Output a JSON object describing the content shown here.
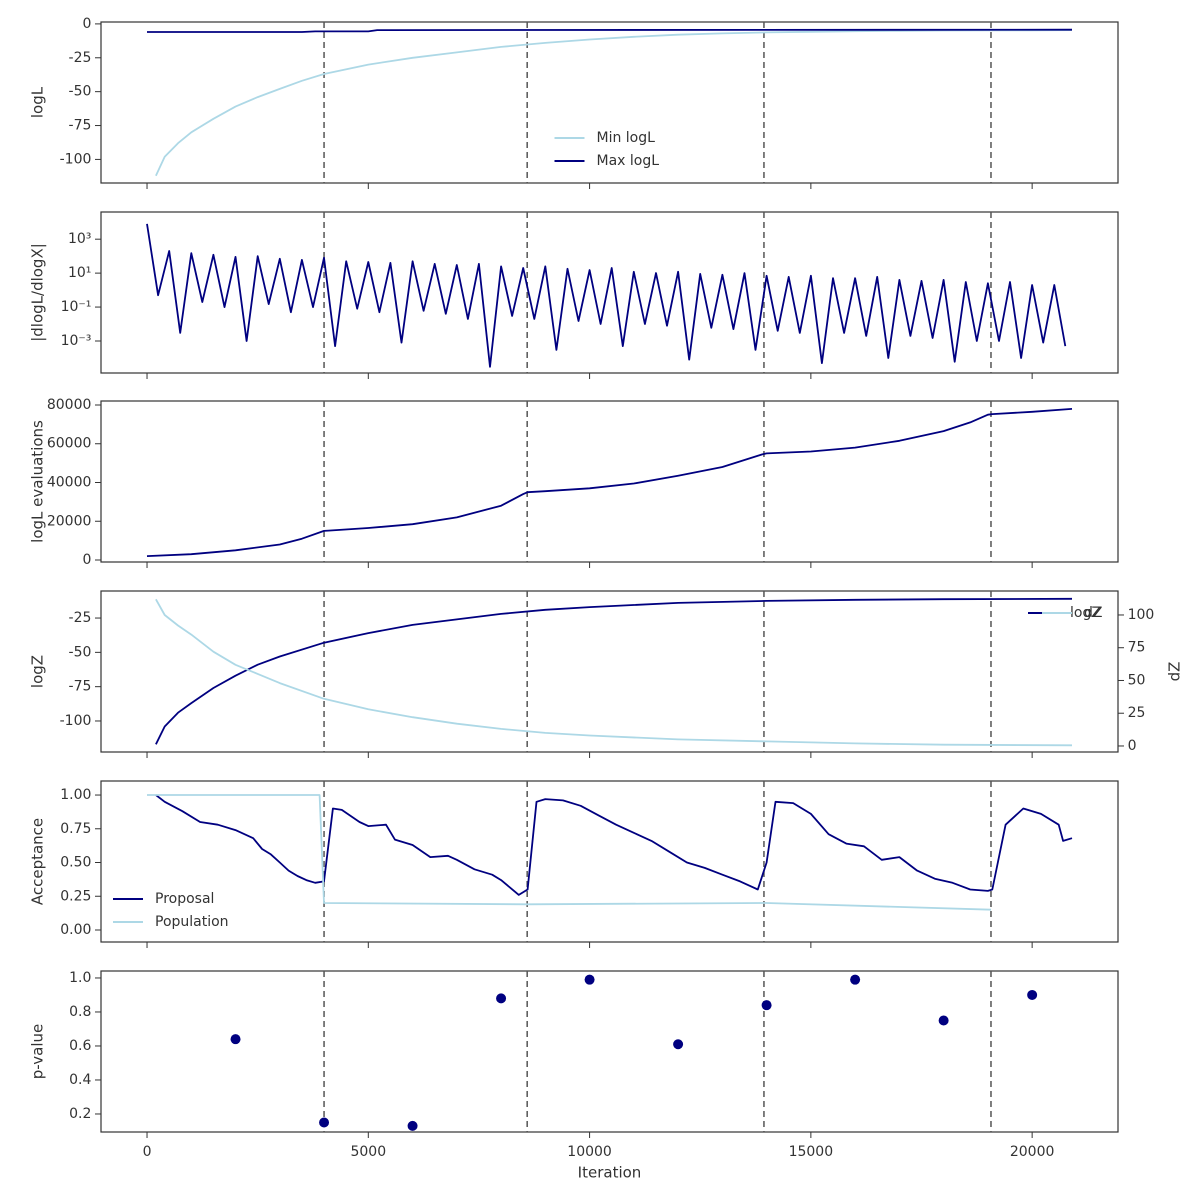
{
  "chart_data": [
    {
      "type": "line",
      "ylabel": "logL",
      "xlim": [
        -1040,
        21940
      ],
      "ylim": [
        -117.4,
        1.4
      ],
      "xticks": [
        0,
        5000,
        10000,
        15000,
        20000
      ],
      "show_xticklabels": false,
      "yticks": [
        0,
        -25,
        -50,
        -75,
        -100
      ],
      "vlines": [
        4000,
        8590,
        13940,
        19070
      ],
      "legend": "lower center",
      "series": [
        {
          "name": "Min logL",
          "color": "#add8e6",
          "x": [
            200,
            400,
            700,
            1000,
            1500,
            2000,
            2500,
            3000,
            3500,
            4000,
            5000,
            6000,
            7000,
            8000,
            9000,
            10000,
            11000,
            12000,
            13000,
            14000,
            15000,
            16000,
            17000,
            18000,
            19000,
            20000,
            20900
          ],
          "values": [
            -112,
            -98,
            -88,
            -80,
            -70,
            -61,
            -54,
            -48,
            -42,
            -37,
            -30,
            -25,
            -21,
            -17,
            -14,
            -11.5,
            -9.5,
            -8,
            -7,
            -6.3,
            -5.8,
            -5.4,
            -5.1,
            -4.9,
            -4.8,
            -4.7,
            -4.6
          ]
        },
        {
          "name": "Max logL",
          "color": "#000080",
          "x": [
            0,
            3500,
            3800,
            5000,
            5200,
            20900
          ],
          "values": [
            -6,
            -6,
            -5.5,
            -5.5,
            -4.6,
            -4.3
          ]
        }
      ]
    },
    {
      "type": "line",
      "ylabel": "|dlogL/dlogX|",
      "log_scale": true,
      "xlim": [
        -1040,
        21940
      ],
      "ylim": [
        1.3e-05,
        40000
      ],
      "xticks": [
        0,
        5000,
        10000,
        15000,
        20000
      ],
      "show_xticklabels": false,
      "yticks": [
        {
          "value": 0.001,
          "label": "10⁻³"
        },
        {
          "value": 0.1,
          "label": "10⁻¹"
        },
        {
          "value": 10,
          "label": "10¹"
        },
        {
          "value": 1000,
          "label": "10³"
        }
      ],
      "vlines": [
        4000,
        8590,
        13940,
        19070
      ],
      "series": [
        {
          "color": "#000080",
          "x": [
            0,
            250,
            500,
            750,
            1000,
            1250,
            1500,
            1750,
            2000,
            2250,
            2500,
            2750,
            3000,
            3250,
            3500,
            3750,
            4000,
            4250,
            4500,
            4750,
            5000,
            5250,
            5500,
            5750,
            6000,
            6250,
            6500,
            6750,
            7000,
            7250,
            7500,
            7750,
            8000,
            8250,
            8500,
            8750,
            9000,
            9250,
            9500,
            9750,
            10000,
            10250,
            10500,
            10750,
            11000,
            11250,
            11500,
            11750,
            12000,
            12250,
            12500,
            12750,
            13000,
            13250,
            13500,
            13750,
            14000,
            14250,
            14500,
            14750,
            15000,
            15250,
            15500,
            15750,
            16000,
            16250,
            16500,
            16750,
            17000,
            17250,
            17500,
            17750,
            18000,
            18250,
            18500,
            18750,
            19000,
            19250,
            19500,
            19750,
            20000,
            20250,
            20500,
            20750
          ],
          "values": [
            8000,
            0.5,
            200,
            0.003,
            150,
            0.2,
            120,
            0.1,
            90,
            0.001,
            100,
            0.15,
            70,
            0.05,
            60,
            0.1,
            80,
            0.0005,
            50,
            0.08,
            45,
            0.05,
            40,
            0.0008,
            50,
            0.06,
            35,
            0.04,
            30,
            0.02,
            35,
            3e-05,
            25,
            0.03,
            20,
            0.02,
            25,
            0.0003,
            18,
            0.015,
            15,
            0.01,
            20,
            0.0005,
            12,
            0.01,
            10,
            0.008,
            12,
            8e-05,
            9,
            0.006,
            8,
            0.005,
            10,
            0.0003,
            7,
            0.004,
            6,
            0.003,
            7,
            5e-05,
            5,
            0.003,
            5,
            0.002,
            6,
            0.0001,
            4,
            0.002,
            3.5,
            0.0015,
            4,
            6e-05,
            3,
            0.001,
            2.5,
            0.001,
            3,
            0.0001,
            2,
            0.0008,
            2,
            0.0005
          ]
        }
      ]
    },
    {
      "type": "line",
      "ylabel": "logL evaluations",
      "xlim": [
        -1040,
        21940
      ],
      "ylim": [
        -1030,
        82060
      ],
      "xticks": [
        0,
        5000,
        10000,
        15000,
        20000
      ],
      "show_xticklabels": false,
      "yticks": [
        0,
        20000,
        40000,
        60000,
        80000
      ],
      "vlines": [
        4000,
        8590,
        13940,
        19070
      ],
      "series": [
        {
          "color": "#000080",
          "x": [
            0,
            1000,
            2000,
            3000,
            3500,
            4000,
            4100,
            5000,
            6000,
            7000,
            8000,
            8500,
            8600,
            9000,
            10000,
            11000,
            12000,
            13000,
            13900,
            14000,
            15000,
            16000,
            17000,
            18000,
            18600,
            19000,
            19100,
            20000,
            20900
          ],
          "values": [
            2000,
            3000,
            5000,
            8000,
            11000,
            15000,
            15200,
            16500,
            18500,
            22000,
            28000,
            34000,
            35000,
            35500,
            37000,
            39500,
            43500,
            48000,
            54500,
            55000,
            56000,
            58000,
            61500,
            66500,
            71000,
            75000,
            75300,
            76500,
            78000
          ]
        }
      ]
    },
    {
      "type": "line",
      "ylabel": "logZ",
      "y2label": "dZ",
      "xlim": [
        -1040,
        21940
      ],
      "ylim": [
        -122.6,
        -5.3
      ],
      "y2lim": [
        -4.6,
        118.3
      ],
      "xticks": [
        0,
        5000,
        10000,
        15000,
        20000
      ],
      "show_xticklabels": false,
      "yticks": [
        -25,
        -50,
        -75,
        -100
      ],
      "y2ticks": [
        0,
        25,
        50,
        75,
        100
      ],
      "vlines": [
        4000,
        8590,
        13940,
        19070
      ],
      "legend": "upper right",
      "series": [
        {
          "name": "logZ",
          "color": "#000080",
          "x": [
            200,
            400,
            700,
            1000,
            1500,
            2000,
            2500,
            3000,
            4000,
            5000,
            6000,
            7000,
            8000,
            9000,
            10000,
            12000,
            14000,
            16000,
            18000,
            20900
          ],
          "values": [
            -117,
            -104,
            -94,
            -87,
            -76,
            -67,
            -59,
            -53,
            -43,
            -36,
            -30,
            -26,
            -22,
            -19,
            -17,
            -14,
            -12.5,
            -11.7,
            -11.3,
            -11
          ]
        },
        {
          "name": "dZ",
          "color": "#add8e6",
          "axis": "y2",
          "x": [
            200,
            400,
            700,
            1000,
            1500,
            2000,
            2500,
            3000,
            4000,
            5000,
            6000,
            7000,
            8000,
            9000,
            10000,
            12000,
            14000,
            16000,
            18000,
            20900
          ],
          "values": [
            112,
            100,
            92,
            85,
            72,
            62,
            55,
            48,
            36,
            28,
            22,
            17,
            13,
            10,
            8,
            5,
            3.5,
            2,
            1,
            0.5
          ]
        }
      ]
    },
    {
      "type": "line",
      "ylabel": "Acceptance",
      "xlim": [
        -1040,
        21940
      ],
      "ylim": [
        -0.089,
        1.104
      ],
      "xticks": [
        0,
        5000,
        10000,
        15000,
        20000
      ],
      "show_xticklabels": false,
      "yticks": [
        {
          "value": 0,
          "label": "0.00"
        },
        {
          "value": 0.25,
          "label": "0.25"
        },
        {
          "value": 0.5,
          "label": "0.50"
        },
        {
          "value": 0.75,
          "label": "0.75"
        },
        {
          "value": 1,
          "label": "1.00"
        }
      ],
      "vlines": [
        4000,
        8590,
        13940,
        19070
      ],
      "legend": "lower left",
      "series": [
        {
          "name": "Proposal",
          "color": "#000080",
          "x": [
            200,
            400,
            800,
            1200,
            1600,
            2000,
            2400,
            2600,
            2800,
            3000,
            3200,
            3400,
            3600,
            3800,
            4000,
            4200,
            4400,
            4800,
            5000,
            5400,
            5600,
            6000,
            6400,
            6800,
            7000,
            7400,
            7800,
            8000,
            8400,
            8600,
            8800,
            9000,
            9400,
            9800,
            10200,
            10600,
            11000,
            11400,
            11800,
            12200,
            12600,
            13000,
            13400,
            13800,
            14000,
            14200,
            14600,
            15000,
            15400,
            15800,
            16200,
            16600,
            17000,
            17400,
            17800,
            18200,
            18600,
            19000,
            19100,
            19400,
            19800,
            20200,
            20600,
            20700,
            20900
          ],
          "values": [
            1.0,
            0.95,
            0.88,
            0.8,
            0.78,
            0.74,
            0.68,
            0.6,
            0.56,
            0.5,
            0.44,
            0.4,
            0.37,
            0.35,
            0.36,
            0.9,
            0.89,
            0.8,
            0.77,
            0.78,
            0.67,
            0.63,
            0.54,
            0.55,
            0.52,
            0.45,
            0.41,
            0.37,
            0.26,
            0.3,
            0.95,
            0.97,
            0.96,
            0.92,
            0.85,
            0.78,
            0.72,
            0.66,
            0.58,
            0.5,
            0.46,
            0.41,
            0.36,
            0.3,
            0.5,
            0.95,
            0.94,
            0.86,
            0.71,
            0.64,
            0.62,
            0.52,
            0.54,
            0.44,
            0.38,
            0.35,
            0.3,
            0.29,
            0.3,
            0.78,
            0.9,
            0.86,
            0.78,
            0.66,
            0.68
          ]
        },
        {
          "name": "Population",
          "color": "#add8e6",
          "x": [
            0,
            3900,
            4000,
            8600,
            14000,
            19070
          ],
          "values": [
            1,
            1,
            0.2,
            0.19,
            0.2,
            0.15
          ]
        }
      ]
    },
    {
      "type": "scatter",
      "ylabel": "p-value",
      "xlabel": "Iteration",
      "xlim": [
        -1040,
        21940
      ],
      "ylim": [
        0.094,
        1.041
      ],
      "xticks": [
        0,
        5000,
        10000,
        15000,
        20000
      ],
      "show_xticklabels": true,
      "yticks": [
        0.2,
        0.4,
        0.6,
        0.8,
        {
          "value": 1,
          "label": "1.0"
        }
      ],
      "vlines": [
        4000,
        8590,
        13940,
        19070
      ],
      "series": [
        {
          "color": "#000080",
          "x": [
            2000,
            4000,
            6000,
            8000,
            10000,
            12000,
            14000,
            16000,
            18000,
            20000
          ],
          "values": [
            0.64,
            0.15,
            0.13,
            0.88,
            0.99,
            0.61,
            0.84,
            0.99,
            0.75,
            0.9
          ]
        }
      ]
    }
  ]
}
